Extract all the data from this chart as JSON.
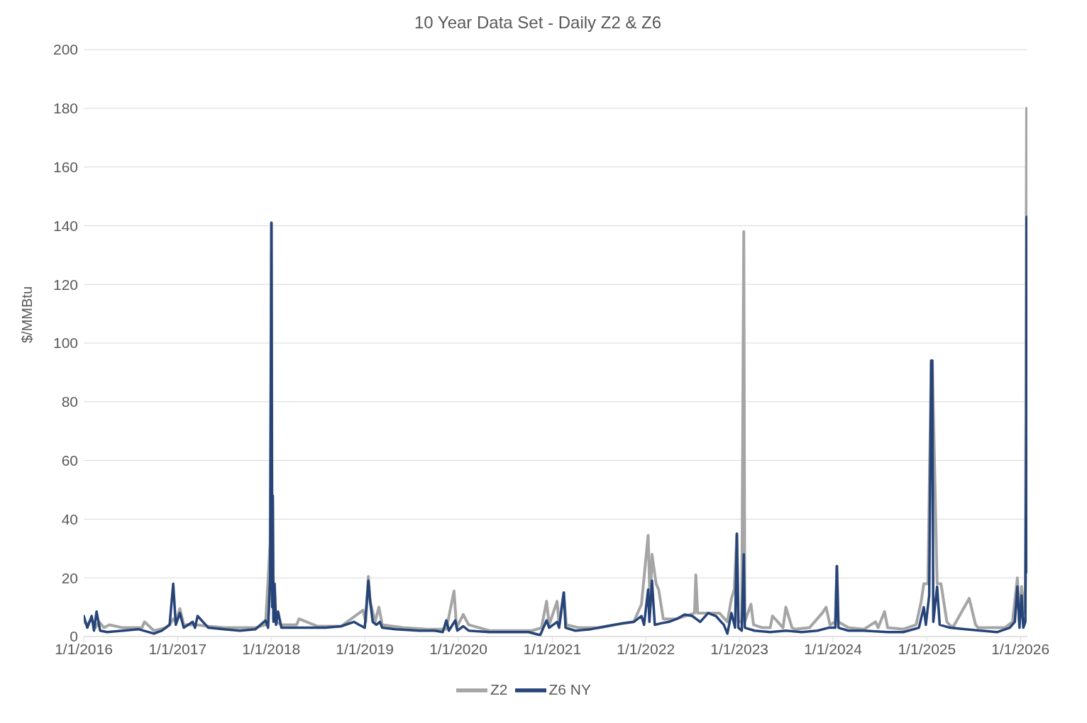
{
  "chart_data": {
    "type": "line",
    "title": "10 Year Data Set - Daily Z2 & Z6",
    "ylabel": "$/MMBtu",
    "xlim": [
      "2016-01-01",
      "2026-01-28"
    ],
    "xticks": [
      {
        "value": "2016-01-01",
        "label": "1/1/2016"
      },
      {
        "value": "2017-01-01",
        "label": "1/1/2017"
      },
      {
        "value": "2018-01-01",
        "label": "1/1/2018"
      },
      {
        "value": "2019-01-01",
        "label": "1/1/2019"
      },
      {
        "value": "2020-01-01",
        "label": "1/1/2020"
      },
      {
        "value": "2021-01-01",
        "label": "1/1/2021"
      },
      {
        "value": "2022-01-01",
        "label": "1/1/2022"
      },
      {
        "value": "2023-01-01",
        "label": "1/1/2023"
      },
      {
        "value": "2024-01-01",
        "label": "1/1/2024"
      },
      {
        "value": "2025-01-01",
        "label": "1/1/2025"
      },
      {
        "value": "2026-01-01",
        "label": "1/1/2026"
      }
    ],
    "ylim": [
      0,
      200
    ],
    "yticks": [
      0,
      20,
      40,
      60,
      80,
      100,
      120,
      140,
      160,
      180,
      200
    ],
    "grid": "y",
    "legend": "bottom",
    "marker": "none",
    "line_style": "solid",
    "series": [
      {
        "name": "Z2",
        "color": "#a5a5a5",
        "x": [
          "2016-01-01",
          "2016-01-15",
          "2016-02-01",
          "2016-02-15",
          "2016-03-01",
          "2016-03-20",
          "2016-04-10",
          "2016-06-01",
          "2016-08-15",
          "2016-08-25",
          "2016-10-01",
          "2016-11-15",
          "2016-12-01",
          "2016-12-15",
          "2016-12-25",
          "2017-01-10",
          "2017-01-25",
          "2017-03-15",
          "2017-05-01",
          "2017-07-01",
          "2017-09-01",
          "2017-11-01",
          "2017-12-10",
          "2017-12-28",
          "2018-01-02",
          "2018-01-05",
          "2018-01-07",
          "2018-01-10",
          "2018-01-14",
          "2018-01-20",
          "2018-02-10",
          "2018-04-10",
          "2018-04-20",
          "2018-07-01",
          "2018-10-01",
          "2018-12-25",
          "2019-01-05",
          "2019-01-15",
          "2019-01-22",
          "2019-02-10",
          "2019-02-25",
          "2019-03-10",
          "2019-06-01",
          "2019-09-01",
          "2019-11-15",
          "2019-12-15",
          "2019-12-25",
          "2020-01-20",
          "2020-02-10",
          "2020-05-01",
          "2020-08-01",
          "2020-10-15",
          "2020-11-20",
          "2020-12-10",
          "2020-12-20",
          "2021-01-20",
          "2021-01-28",
          "2021-02-15",
          "2021-02-25",
          "2021-04-15",
          "2021-07-01",
          "2021-09-01",
          "2021-11-15",
          "2021-12-15",
          "2022-01-10",
          "2022-01-18",
          "2022-01-25",
          "2022-02-10",
          "2022-02-20",
          "2022-03-10",
          "2022-05-01",
          "2022-07-10",
          "2022-07-15",
          "2022-07-22",
          "2022-09-01",
          "2022-10-15",
          "2022-11-15",
          "2022-12-01",
          "2022-12-12",
          "2022-12-22",
          "2022-12-28",
          "2023-01-10",
          "2023-01-18",
          "2023-01-22",
          "2023-02-15",
          "2023-02-25",
          "2023-04-01",
          "2023-05-01",
          "2023-05-10",
          "2023-06-20",
          "2023-07-01",
          "2023-07-25",
          "2023-08-05",
          "2023-10-01",
          "2023-11-20",
          "2023-12-05",
          "2023-12-20",
          "2024-01-10",
          "2024-01-16",
          "2024-01-22",
          "2024-03-01",
          "2024-05-01",
          "2024-06-15",
          "2024-06-25",
          "2024-07-20",
          "2024-08-01",
          "2024-10-01",
          "2024-11-20",
          "2024-12-10",
          "2024-12-20",
          "2025-01-05",
          "2025-01-18",
          "2025-01-22",
          "2025-02-10",
          "2025-02-25",
          "2025-03-20",
          "2025-04-05",
          "2025-04-15",
          "2025-05-01",
          "2025-06-15",
          "2025-07-10",
          "2025-07-20",
          "2025-09-01",
          "2025-11-01",
          "2025-12-01",
          "2025-12-20",
          "2025-12-28",
          "2026-01-05",
          "2026-01-15",
          "2026-01-20",
          "2026-01-25",
          "2026-01-27"
        ],
        "values": [
          5,
          4,
          6,
          3,
          5,
          3,
          4,
          3,
          3,
          5,
          2,
          3,
          4,
          6,
          5,
          9.5,
          4,
          4,
          3.5,
          3,
          3,
          3,
          4,
          32,
          141,
          12,
          48,
          6,
          18,
          5,
          4,
          4,
          6,
          3.5,
          3.5,
          9,
          5,
          20.5,
          12,
          5,
          10,
          4,
          3,
          2.5,
          2.5,
          15.5,
          3,
          7.5,
          4,
          2,
          2,
          2,
          3,
          12,
          4,
          12,
          4,
          15,
          4,
          3,
          3,
          4,
          5,
          11,
          34.5,
          10,
          28,
          18,
          16,
          6,
          6,
          8,
          21,
          8,
          8,
          8,
          5,
          13,
          16,
          35,
          5,
          5,
          138,
          5,
          11,
          4,
          3,
          3,
          7,
          3,
          10,
          3,
          2.5,
          3,
          8,
          10,
          4,
          5,
          24,
          5,
          3,
          2.5,
          5,
          3,
          8.5,
          3,
          2.5,
          4,
          12,
          18,
          18,
          94,
          94,
          18,
          18,
          5,
          3.5,
          3.5,
          6,
          13,
          4,
          3,
          3,
          3,
          5,
          20,
          5,
          17,
          8,
          17,
          180,
          30
        ]
      },
      {
        "name": "Z6 NY",
        "color": "#264478",
        "x": [
          "2016-01-01",
          "2016-01-15",
          "2016-02-01",
          "2016-02-10",
          "2016-02-20",
          "2016-03-05",
          "2016-04-01",
          "2016-06-01",
          "2016-08-01",
          "2016-10-01",
          "2016-11-01",
          "2016-12-01",
          "2016-12-15",
          "2016-12-25",
          "2017-01-10",
          "2017-01-25",
          "2017-03-01",
          "2017-03-10",
          "2017-03-20",
          "2017-05-01",
          "2017-07-01",
          "2017-09-01",
          "2017-11-01",
          "2017-12-10",
          "2017-12-20",
          "2017-12-28",
          "2018-01-02",
          "2018-01-05",
          "2018-01-07",
          "2018-01-10",
          "2018-01-14",
          "2018-01-20",
          "2018-01-28",
          "2018-02-10",
          "2018-04-01",
          "2018-06-01",
          "2018-08-01",
          "2018-10-01",
          "2018-11-20",
          "2018-12-10",
          "2019-01-01",
          "2019-01-15",
          "2019-01-22",
          "2019-02-01",
          "2019-02-15",
          "2019-03-01",
          "2019-03-10",
          "2019-05-01",
          "2019-08-01",
          "2019-10-01",
          "2019-11-01",
          "2019-11-15",
          "2019-11-25",
          "2019-12-20",
          "2019-12-28",
          "2020-01-20",
          "2020-02-10",
          "2020-05-01",
          "2020-08-01",
          "2020-10-01",
          "2020-11-15",
          "2020-12-10",
          "2020-12-20",
          "2021-01-20",
          "2021-01-28",
          "2021-02-15",
          "2021-02-22",
          "2021-04-01",
          "2021-06-01",
          "2021-08-01",
          "2021-10-01",
          "2021-11-15",
          "2021-12-15",
          "2021-12-25",
          "2022-01-10",
          "2022-01-15",
          "2022-01-25",
          "2022-02-05",
          "2022-03-01",
          "2022-04-01",
          "2022-05-01",
          "2022-06-01",
          "2022-07-01",
          "2022-08-01",
          "2022-09-01",
          "2022-10-01",
          "2022-11-01",
          "2022-11-15",
          "2022-12-01",
          "2022-12-15",
          "2022-12-22",
          "2022-12-28",
          "2023-01-10",
          "2023-01-18",
          "2023-01-22",
          "2023-03-01",
          "2023-05-01",
          "2023-07-01",
          "2023-09-01",
          "2023-11-01",
          "2023-12-15",
          "2024-01-10",
          "2024-01-16",
          "2024-01-22",
          "2024-03-01",
          "2024-05-01",
          "2024-08-01",
          "2024-10-01",
          "2024-12-01",
          "2024-12-20",
          "2024-12-28",
          "2025-01-10",
          "2025-01-18",
          "2025-01-22",
          "2025-01-26",
          "2025-02-10",
          "2025-02-20",
          "2025-04-01",
          "2025-06-01",
          "2025-08-01",
          "2025-10-01",
          "2025-11-20",
          "2025-12-10",
          "2025-12-20",
          "2025-12-28",
          "2026-01-05",
          "2026-01-12",
          "2026-01-20",
          "2026-01-24",
          "2026-01-25",
          "2026-01-27"
        ],
        "values": [
          7,
          3,
          7,
          2,
          8.5,
          2,
          1.5,
          2,
          2.5,
          1,
          2,
          4,
          18,
          4,
          8,
          3,
          5,
          3,
          7,
          3,
          2.5,
          2,
          2.5,
          5.5,
          3,
          20,
          141,
          10,
          48,
          5,
          18,
          4,
          8.5,
          3,
          3,
          3,
          3,
          3.5,
          5,
          4,
          3,
          19,
          12,
          5,
          4,
          5,
          3,
          2.5,
          2,
          2,
          1.5,
          5.5,
          2,
          5.5,
          2,
          3.5,
          2,
          1.5,
          1.5,
          1.5,
          0.5,
          5.5,
          3,
          5,
          3,
          15,
          3,
          2,
          2.5,
          3.5,
          4.5,
          5,
          7,
          4,
          16,
          5,
          19,
          4,
          4.5,
          5,
          6,
          7.5,
          7,
          5,
          8,
          7,
          4,
          1,
          8,
          3,
          35,
          3,
          2,
          28,
          3,
          2,
          1.5,
          2,
          1.5,
          2,
          3,
          3,
          24,
          3,
          2,
          2,
          1.5,
          1.5,
          3,
          10,
          4,
          14,
          94,
          94,
          5,
          17,
          4,
          3,
          2.5,
          2,
          1.5,
          3,
          5,
          17,
          3,
          14,
          3,
          5,
          74,
          143,
          22
        ]
      }
    ]
  }
}
